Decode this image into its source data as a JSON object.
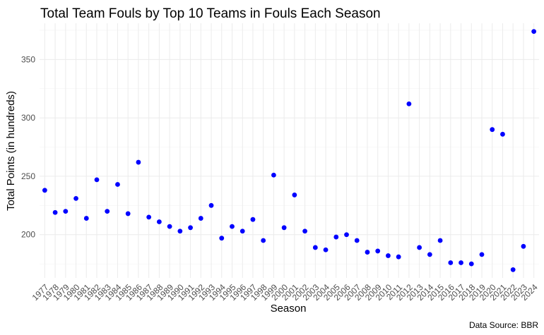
{
  "chart_data": {
    "type": "scatter",
    "title": "Total Team Fouls by Top 10 Teams in Fouls Each Season",
    "xlabel": "Season",
    "ylabel": "Total Points (in hundreds)",
    "caption": "Data Source: BBR",
    "categories": [
      "1977",
      "1978",
      "1979",
      "1980",
      "1981",
      "1982",
      "1983",
      "1984",
      "1985",
      "1986",
      "1987",
      "1988",
      "1989",
      "1990",
      "1991",
      "1992",
      "1993",
      "1994",
      "1995",
      "1996",
      "1997",
      "1998",
      "1999",
      "2000",
      "2001",
      "2002",
      "2003",
      "2004",
      "2005",
      "2006",
      "2007",
      "2008",
      "2009",
      "2010",
      "2011",
      "2012",
      "2013",
      "2014",
      "2015",
      "2016",
      "2017",
      "2018",
      "2019",
      "2020",
      "2021",
      "2022",
      "2023",
      "2024"
    ],
    "values": [
      238,
      219,
      220,
      231,
      214,
      247,
      220,
      243,
      218,
      262,
      215,
      211,
      207,
      203,
      206,
      214,
      225,
      197,
      207,
      203,
      213,
      195,
      251,
      206,
      234,
      203,
      189,
      187,
      198,
      200,
      195,
      185,
      186,
      182,
      181,
      312,
      189,
      183,
      195,
      176,
      176,
      175,
      183,
      290,
      286,
      170,
      190,
      374
    ],
    "y_ticks": [
      200,
      250,
      300,
      350
    ],
    "ylim": [
      163,
      381
    ],
    "grid": true,
    "legend": "none",
    "point_color": "#0000ff"
  }
}
